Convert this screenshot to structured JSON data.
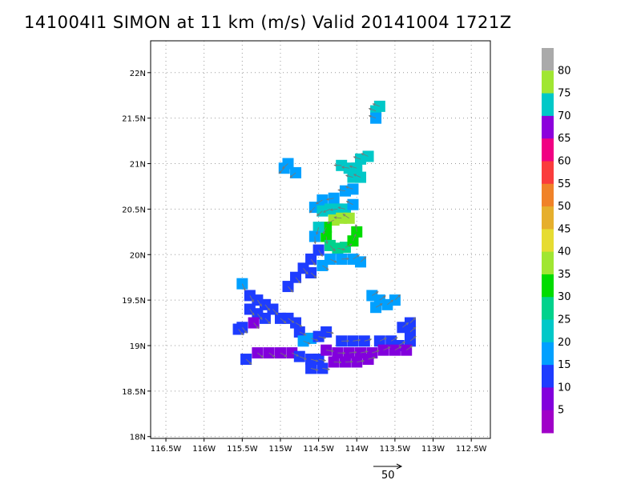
{
  "title": "141004I1 SIMON at 11 km (m/s) Valid 20141004 1721Z",
  "map": {
    "lon_min": -116.7,
    "lon_max": -112.25,
    "lat_min": 17.98,
    "lat_max": 22.35,
    "x_ticks": [
      {
        "lon": -116.5,
        "label": "116.5W"
      },
      {
        "lon": -116.0,
        "label": "116W"
      },
      {
        "lon": -115.5,
        "label": "115.5W"
      },
      {
        "lon": -115.0,
        "label": "115W"
      },
      {
        "lon": -114.5,
        "label": "114.5W"
      },
      {
        "lon": -114.0,
        "label": "114W"
      },
      {
        "lon": -113.5,
        "label": "113.5W"
      },
      {
        "lon": -113.0,
        "label": "113W"
      },
      {
        "lon": -112.5,
        "label": "112.5W"
      }
    ],
    "y_ticks": [
      {
        "lat": 22.0,
        "label": "22N"
      },
      {
        "lat": 21.5,
        "label": "21.5N"
      },
      {
        "lat": 21.0,
        "label": "21N"
      },
      {
        "lat": 20.5,
        "label": "20.5N"
      },
      {
        "lat": 20.0,
        "label": "20N"
      },
      {
        "lat": 19.5,
        "label": "19.5N"
      },
      {
        "lat": 19.0,
        "label": "19N"
      },
      {
        "lat": 18.5,
        "label": "18.5N"
      },
      {
        "lat": 18.0,
        "label": "18N"
      }
    ],
    "grid": true
  },
  "colorbar": {
    "levels": [
      {
        "label": "5",
        "color": "#a000c8"
      },
      {
        "label": "10",
        "color": "#8200dc"
      },
      {
        "label": "15",
        "color": "#1e3cff"
      },
      {
        "label": "20",
        "color": "#00a0ff"
      },
      {
        "label": "25",
        "color": "#00c8c8"
      },
      {
        "label": "30",
        "color": "#00d28c"
      },
      {
        "label": "35",
        "color": "#00dc00"
      },
      {
        "label": "40",
        "color": "#a0e632"
      },
      {
        "label": "45",
        "color": "#e6dc32"
      },
      {
        "label": "50",
        "color": "#e6af2d"
      },
      {
        "label": "55",
        "color": "#f08228"
      },
      {
        "label": "60",
        "color": "#fa3c3c"
      },
      {
        "label": "65",
        "color": "#f00082"
      },
      {
        "label": "70",
        "color": "#8c00dc"
      },
      {
        "label": "75",
        "color": "#00c8c8"
      },
      {
        "label": "80",
        "color": "#a0e632"
      }
    ],
    "top_color": "#aaaaaa",
    "bottom_color": "#a000c8"
  },
  "reference_vector": {
    "label": "50"
  },
  "wind_field": [
    {
      "lon": -113.75,
      "lat": 21.58,
      "c": "#00c8c8"
    },
    {
      "lon": -113.7,
      "lat": 21.63,
      "c": "#00c8c8"
    },
    {
      "lon": -113.75,
      "lat": 21.5,
      "c": "#00a0ff"
    },
    {
      "lon": -114.9,
      "lat": 21.0,
      "c": "#00a0ff"
    },
    {
      "lon": -114.95,
      "lat": 20.95,
      "c": "#00a0ff"
    },
    {
      "lon": -114.8,
      "lat": 20.9,
      "c": "#00a0ff"
    },
    {
      "lon": -114.2,
      "lat": 20.98,
      "c": "#00c8c8"
    },
    {
      "lon": -114.1,
      "lat": 20.95,
      "c": "#00c8c8"
    },
    {
      "lon": -114.0,
      "lat": 20.95,
      "c": "#00c8c8"
    },
    {
      "lon": -113.95,
      "lat": 21.05,
      "c": "#00c8c8"
    },
    {
      "lon": -113.85,
      "lat": 21.08,
      "c": "#00c8c8"
    },
    {
      "lon": -114.05,
      "lat": 20.85,
      "c": "#00c8c8"
    },
    {
      "lon": -113.95,
      "lat": 20.85,
      "c": "#00c8c8"
    },
    {
      "lon": -114.05,
      "lat": 20.72,
      "c": "#00a0ff"
    },
    {
      "lon": -114.15,
      "lat": 20.7,
      "c": "#00a0ff"
    },
    {
      "lon": -114.3,
      "lat": 20.62,
      "c": "#00a0ff"
    },
    {
      "lon": -114.45,
      "lat": 20.6,
      "c": "#00a0ff"
    },
    {
      "lon": -114.55,
      "lat": 20.52,
      "c": "#00a0ff"
    },
    {
      "lon": -114.45,
      "lat": 20.48,
      "c": "#00c8c8"
    },
    {
      "lon": -114.35,
      "lat": 20.5,
      "c": "#00c8c8"
    },
    {
      "lon": -114.25,
      "lat": 20.5,
      "c": "#00c8c8"
    },
    {
      "lon": -114.15,
      "lat": 20.5,
      "c": "#00c8c8"
    },
    {
      "lon": -114.05,
      "lat": 20.55,
      "c": "#00a0ff"
    },
    {
      "lon": -114.1,
      "lat": 20.4,
      "c": "#a0e632"
    },
    {
      "lon": -114.2,
      "lat": 20.4,
      "c": "#a0e632"
    },
    {
      "lon": -114.3,
      "lat": 20.38,
      "c": "#a0e632"
    },
    {
      "lon": -114.4,
      "lat": 20.3,
      "c": "#00dc00"
    },
    {
      "lon": -114.4,
      "lat": 20.2,
      "c": "#00dc00"
    },
    {
      "lon": -114.35,
      "lat": 20.1,
      "c": "#00d28c"
    },
    {
      "lon": -114.25,
      "lat": 20.07,
      "c": "#00d28c"
    },
    {
      "lon": -114.15,
      "lat": 20.08,
      "c": "#00d28c"
    },
    {
      "lon": -114.05,
      "lat": 20.15,
      "c": "#00dc00"
    },
    {
      "lon": -114.0,
      "lat": 20.25,
      "c": "#00dc00"
    },
    {
      "lon": -114.5,
      "lat": 20.3,
      "c": "#00c8c8"
    },
    {
      "lon": -114.55,
      "lat": 20.2,
      "c": "#00a0ff"
    },
    {
      "lon": -114.5,
      "lat": 20.05,
      "c": "#1e3cff"
    },
    {
      "lon": -114.6,
      "lat": 19.95,
      "c": "#1e3cff"
    },
    {
      "lon": -114.7,
      "lat": 19.85,
      "c": "#1e3cff"
    },
    {
      "lon": -114.6,
      "lat": 19.8,
      "c": "#1e3cff"
    },
    {
      "lon": -114.8,
      "lat": 19.75,
      "c": "#1e3cff"
    },
    {
      "lon": -114.9,
      "lat": 19.65,
      "c": "#1e3cff"
    },
    {
      "lon": -114.45,
      "lat": 19.88,
      "c": "#00a0ff"
    },
    {
      "lon": -114.35,
      "lat": 19.95,
      "c": "#00a0ff"
    },
    {
      "lon": -114.2,
      "lat": 19.95,
      "c": "#00a0ff"
    },
    {
      "lon": -114.05,
      "lat": 19.95,
      "c": "#00a0ff"
    },
    {
      "lon": -113.95,
      "lat": 19.92,
      "c": "#00a0ff"
    },
    {
      "lon": -115.5,
      "lat": 19.68,
      "c": "#00a0ff"
    },
    {
      "lon": -115.4,
      "lat": 19.55,
      "c": "#1e3cff"
    },
    {
      "lon": -115.3,
      "lat": 19.5,
      "c": "#1e3cff"
    },
    {
      "lon": -115.2,
      "lat": 19.45,
      "c": "#1e3cff"
    },
    {
      "lon": -115.1,
      "lat": 19.4,
      "c": "#1e3cff"
    },
    {
      "lon": -115.4,
      "lat": 19.4,
      "c": "#1e3cff"
    },
    {
      "lon": -115.3,
      "lat": 19.35,
      "c": "#1e3cff"
    },
    {
      "lon": -115.0,
      "lat": 19.3,
      "c": "#1e3cff"
    },
    {
      "lon": -114.9,
      "lat": 19.3,
      "c": "#1e3cff"
    },
    {
      "lon": -114.8,
      "lat": 19.25,
      "c": "#1e3cff"
    },
    {
      "lon": -115.2,
      "lat": 19.3,
      "c": "#1e3cff"
    },
    {
      "lon": -115.5,
      "lat": 19.2,
      "c": "#1e3cff"
    },
    {
      "lon": -115.35,
      "lat": 19.25,
      "c": "#8200dc"
    },
    {
      "lon": -115.55,
      "lat": 19.18,
      "c": "#1e3cff"
    },
    {
      "lon": -114.75,
      "lat": 19.15,
      "c": "#1e3cff"
    },
    {
      "lon": -114.7,
      "lat": 19.05,
      "c": "#00a0ff"
    },
    {
      "lon": -114.6,
      "lat": 19.08,
      "c": "#00a0ff"
    },
    {
      "lon": -114.5,
      "lat": 19.1,
      "c": "#1e3cff"
    },
    {
      "lon": -114.4,
      "lat": 19.15,
      "c": "#1e3cff"
    },
    {
      "lon": -113.8,
      "lat": 19.55,
      "c": "#00a0ff"
    },
    {
      "lon": -113.7,
      "lat": 19.5,
      "c": "#00a0ff"
    },
    {
      "lon": -113.6,
      "lat": 19.45,
      "c": "#00a0ff"
    },
    {
      "lon": -113.5,
      "lat": 19.5,
      "c": "#00a0ff"
    },
    {
      "lon": -113.75,
      "lat": 19.42,
      "c": "#00a0ff"
    },
    {
      "lon": -113.3,
      "lat": 19.25,
      "c": "#1e3cff"
    },
    {
      "lon": -113.3,
      "lat": 19.15,
      "c": "#1e3cff"
    },
    {
      "lon": -113.4,
      "lat": 19.2,
      "c": "#1e3cff"
    },
    {
      "lon": -113.3,
      "lat": 19.05,
      "c": "#1e3cff"
    },
    {
      "lon": -113.45,
      "lat": 19.0,
      "c": "#1e3cff"
    },
    {
      "lon": -114.2,
      "lat": 19.05,
      "c": "#1e3cff"
    },
    {
      "lon": -114.05,
      "lat": 19.05,
      "c": "#1e3cff"
    },
    {
      "lon": -113.9,
      "lat": 19.05,
      "c": "#1e3cff"
    },
    {
      "lon": -113.7,
      "lat": 19.05,
      "c": "#1e3cff"
    },
    {
      "lon": -113.55,
      "lat": 19.05,
      "c": "#1e3cff"
    },
    {
      "lon": -115.3,
      "lat": 18.92,
      "c": "#8200dc"
    },
    {
      "lon": -115.15,
      "lat": 18.92,
      "c": "#8200dc"
    },
    {
      "lon": -115.0,
      "lat": 18.92,
      "c": "#8200dc"
    },
    {
      "lon": -114.85,
      "lat": 18.92,
      "c": "#8200dc"
    },
    {
      "lon": -114.75,
      "lat": 18.88,
      "c": "#1e3cff"
    },
    {
      "lon": -114.6,
      "lat": 18.85,
      "c": "#1e3cff"
    },
    {
      "lon": -114.5,
      "lat": 18.85,
      "c": "#1e3cff"
    },
    {
      "lon": -114.4,
      "lat": 18.95,
      "c": "#8200dc"
    },
    {
      "lon": -114.25,
      "lat": 18.92,
      "c": "#8200dc"
    },
    {
      "lon": -114.1,
      "lat": 18.92,
      "c": "#8200dc"
    },
    {
      "lon": -113.95,
      "lat": 18.92,
      "c": "#8200dc"
    },
    {
      "lon": -113.8,
      "lat": 18.92,
      "c": "#8200dc"
    },
    {
      "lon": -113.65,
      "lat": 18.95,
      "c": "#8200dc"
    },
    {
      "lon": -113.5,
      "lat": 18.95,
      "c": "#8200dc"
    },
    {
      "lon": -113.35,
      "lat": 18.95,
      "c": "#8200dc"
    },
    {
      "lon": -114.6,
      "lat": 18.75,
      "c": "#1e3cff"
    },
    {
      "lon": -114.45,
      "lat": 18.75,
      "c": "#1e3cff"
    },
    {
      "lon": -114.3,
      "lat": 18.82,
      "c": "#8200dc"
    },
    {
      "lon": -114.15,
      "lat": 18.82,
      "c": "#8200dc"
    },
    {
      "lon": -114.0,
      "lat": 18.82,
      "c": "#8200dc"
    },
    {
      "lon": -113.85,
      "lat": 18.85,
      "c": "#8200dc"
    },
    {
      "lon": -115.45,
      "lat": 18.85,
      "c": "#1e3cff"
    }
  ]
}
